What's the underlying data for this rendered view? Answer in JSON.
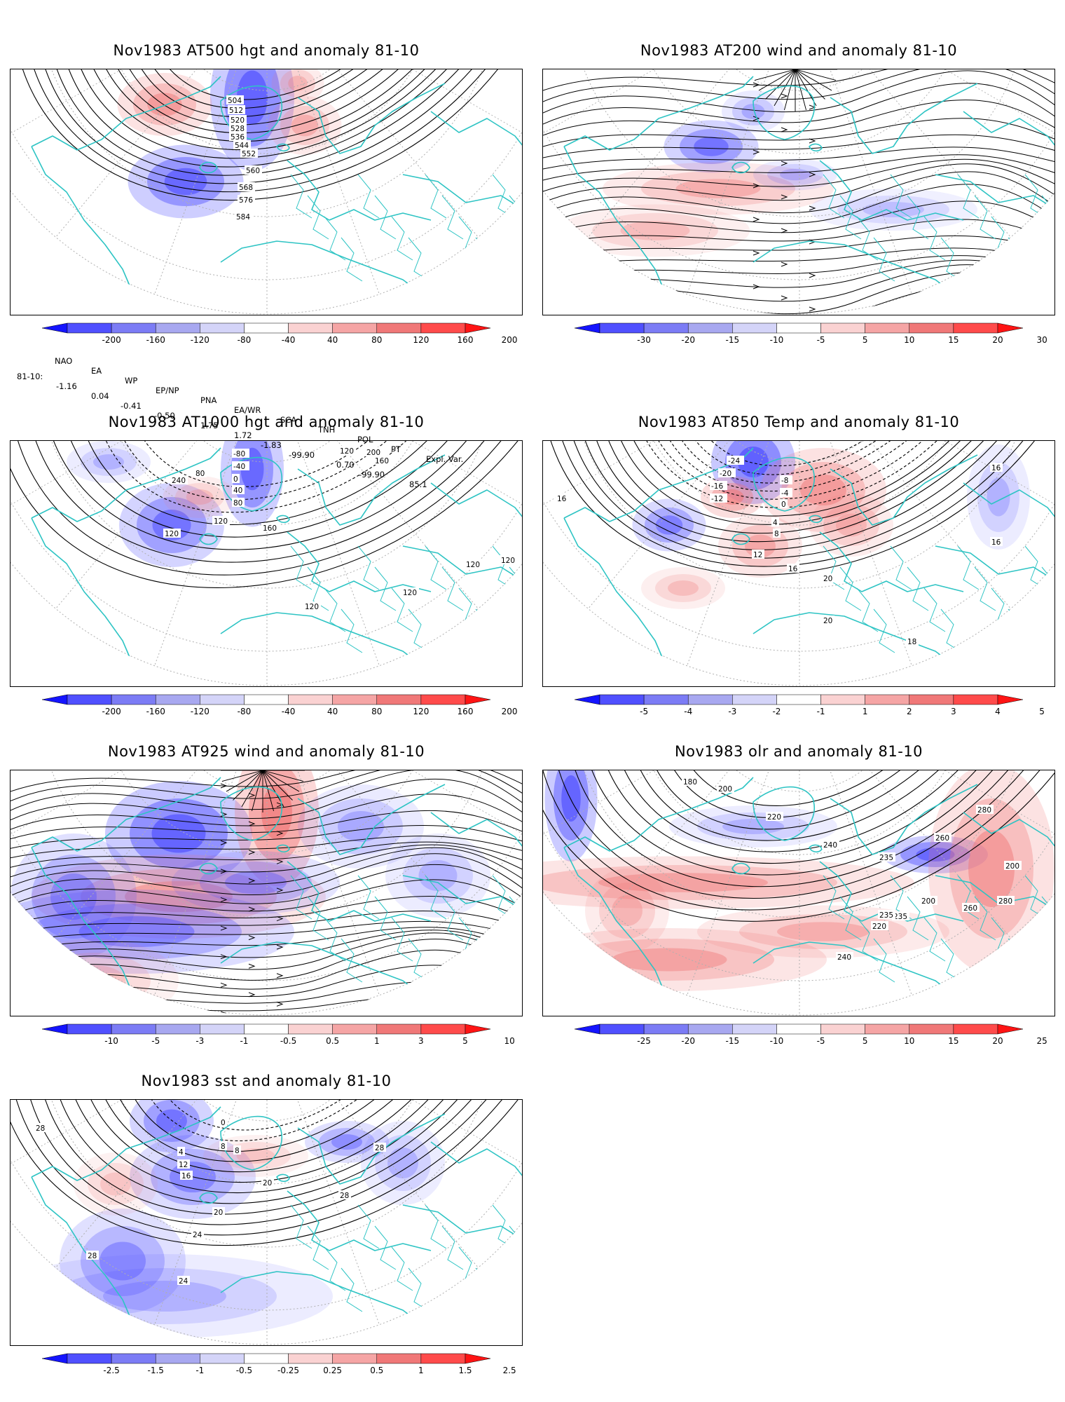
{
  "panels": [
    {
      "id": "z500",
      "title": "Nov1983 AT500 hgt and anomaly 81-10",
      "contour_labels": [
        "504",
        "512",
        "520",
        "528",
        "536",
        "544",
        "552",
        "560",
        "568",
        "576",
        "584"
      ],
      "colorbar_labels": [
        "-200",
        "-160",
        "-120",
        "-80",
        "-40",
        "40",
        "80",
        "120",
        "160",
        "200"
      ]
    },
    {
      "id": "w200",
      "title": "Nov1983 AT200 wind and anomaly 81-10",
      "contour_labels": [],
      "colorbar_labels": [
        "-30",
        "-20",
        "-15",
        "-10",
        "-5",
        "5",
        "10",
        "15",
        "20",
        "30"
      ]
    },
    {
      "id": "z1000",
      "title": "Nov1983 AT1000 hgt and anomaly 81-10",
      "contour_labels": [
        "-80",
        "-40",
        "0",
        "40",
        "80",
        "120",
        "160",
        "200",
        "240",
        "120",
        "80",
        "160",
        "120",
        "120",
        "120",
        "120",
        "120"
      ],
      "colorbar_labels": [
        "-200",
        "-160",
        "-120",
        "-80",
        "-40",
        "40",
        "80",
        "120",
        "160",
        "200"
      ]
    },
    {
      "id": "t850",
      "title": "Nov1983 AT850 Temp and anomaly 81-10",
      "contour_labels": [
        "-24",
        "-20",
        "-16",
        "-12",
        "-8",
        "-4",
        "0",
        "4",
        "8",
        "12",
        "16",
        "20",
        "16",
        "16",
        "16",
        "20",
        "18"
      ],
      "colorbar_labels": [
        "-5",
        "-4",
        "-3",
        "-2",
        "-1",
        "1",
        "2",
        "3",
        "4",
        "5"
      ]
    },
    {
      "id": "w925",
      "title": "Nov1983 AT925 wind and anomaly 81-10",
      "contour_labels": [],
      "colorbar_labels": [
        "-10",
        "-5",
        "-3",
        "-1",
        "-0.5",
        "0.5",
        "1",
        "3",
        "5",
        "10"
      ]
    },
    {
      "id": "olr",
      "title": "Nov1983 olr and anomaly 81-10",
      "contour_labels": [
        "180",
        "200",
        "220",
        "235",
        "240",
        "260",
        "280",
        "235",
        "200",
        "220",
        "260",
        "280",
        "240",
        "235",
        "200"
      ],
      "colorbar_labels": [
        "-25",
        "-20",
        "-15",
        "-10",
        "-5",
        "5",
        "10",
        "15",
        "20",
        "25"
      ]
    },
    {
      "id": "sst",
      "title": "Nov1983 sst and anomaly 81-10",
      "contour_labels": [
        "0",
        "4",
        "8",
        "12",
        "16",
        "20",
        "24",
        "28",
        "28",
        "24",
        "28",
        "28",
        "20",
        "8"
      ],
      "colorbar_labels": [
        "-2.5",
        "-1.5",
        "-1",
        "-0.5",
        "-0.25",
        "0.25",
        "0.5",
        "1",
        "1.5",
        "2.5"
      ]
    }
  ],
  "colorbar_colors": [
    "#1414ff",
    "#5050ff",
    "#7c7cf5",
    "#a8a8f0",
    "#d4d4f8",
    "#ffffff",
    "#fad2d2",
    "#f5a5a5",
    "#f07878",
    "#ff4b4b",
    "#ff1414"
  ],
  "index_table": {
    "headers": [
      "NAO",
      "EA",
      "WP",
      "EP/NP",
      "PNA",
      "EA/WR",
      "SCA",
      "TNH",
      "POL",
      "PT",
      "Expl. Var."
    ],
    "row_label": "81-10:",
    "values": [
      "-1.16",
      "0.04",
      "-0.41",
      "-0.50",
      "1.75",
      "1.72",
      "-1.83",
      "-99.90",
      "0.70",
      "-99.90",
      "85.1"
    ]
  },
  "colors": {
    "coastline": "#2ec4c4",
    "contour": "#000000",
    "positive_anom": "#f07878",
    "negative_anom": "#5050ff",
    "grid": "#b0b0b0"
  }
}
